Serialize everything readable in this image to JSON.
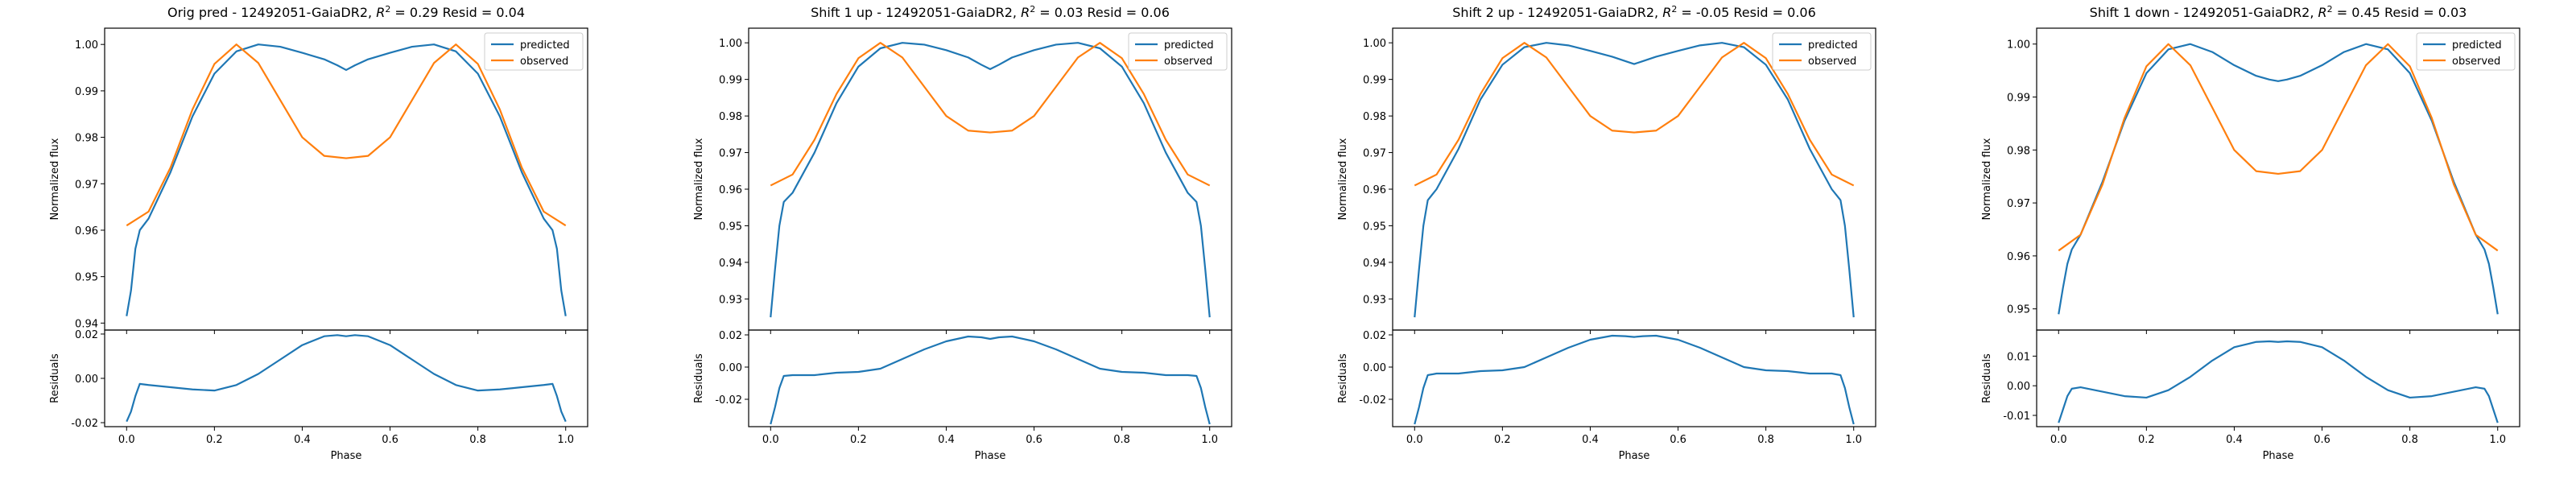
{
  "figure": {
    "legend_labels": [
      "predicted",
      "observed"
    ],
    "colors": {
      "predicted": "#1f77b4",
      "observed": "#ff7f0e"
    }
  },
  "chart_data": [
    {
      "type": "line",
      "title": "Orig pred - 12492051-GaiaDR2, R² = 0.29 Resid = 0.04",
      "title_prefix": "Orig pred - 12492051-GaiaDR2, ",
      "r2_value": "0.29",
      "title_suffix": " Resid = 0.04",
      "xlabel": "Phase",
      "ylabel": "Normalized flux",
      "resid_ylabel": "Residuals",
      "xlim": [
        -0.05,
        1.05
      ],
      "ylim": [
        0.9385,
        1.0035
      ],
      "resid_ylim": [
        -0.0218,
        0.0218
      ],
      "xticks": [
        "0.0",
        "0.2",
        "0.4",
        "0.6",
        "0.8",
        "1.0"
      ],
      "yticks": [
        "0.94",
        "0.95",
        "0.96",
        "0.97",
        "0.98",
        "0.99",
        "1.00"
      ],
      "resid_yticks": [
        "-0.02",
        "0.00",
        "0.02"
      ],
      "legend": "upper right",
      "series": [
        {
          "name": "predicted",
          "x": [
            0.0,
            0.01,
            0.02,
            0.03,
            0.05,
            0.1,
            0.15,
            0.2,
            0.25,
            0.3,
            0.35,
            0.4,
            0.45,
            0.48,
            0.5,
            0.52,
            0.55,
            0.6,
            0.65,
            0.7,
            0.75,
            0.8,
            0.85,
            0.9,
            0.95,
            0.97,
            0.98,
            0.99,
            1.0
          ],
          "y": [
            0.9415,
            0.947,
            0.956,
            0.96,
            0.9625,
            0.9725,
            0.9845,
            0.9937,
            0.9985,
            1.0,
            0.9995,
            0.9982,
            0.9968,
            0.9955,
            0.9945,
            0.9955,
            0.9968,
            0.9982,
            0.9995,
            1.0,
            0.9985,
            0.9937,
            0.9845,
            0.9725,
            0.9625,
            0.96,
            0.956,
            0.947,
            0.9415
          ]
        },
        {
          "name": "observed",
          "x": [
            0.0,
            0.05,
            0.1,
            0.15,
            0.2,
            0.25,
            0.3,
            0.35,
            0.4,
            0.45,
            0.5,
            0.55,
            0.6,
            0.65,
            0.7,
            0.75,
            0.8,
            0.85,
            0.9,
            0.95,
            1.0
          ],
          "y": [
            0.961,
            0.964,
            0.9735,
            0.986,
            0.9958,
            1.0,
            0.996,
            0.988,
            0.98,
            0.976,
            0.9755,
            0.976,
            0.98,
            0.988,
            0.996,
            1.0,
            0.9958,
            0.986,
            0.9735,
            0.964,
            0.961
          ]
        }
      ],
      "residuals": {
        "x": [
          0.0,
          0.01,
          0.02,
          0.03,
          0.05,
          0.1,
          0.15,
          0.2,
          0.25,
          0.3,
          0.35,
          0.4,
          0.45,
          0.48,
          0.5,
          0.52,
          0.55,
          0.6,
          0.65,
          0.7,
          0.75,
          0.8,
          0.85,
          0.9,
          0.95,
          0.97,
          0.98,
          0.99,
          1.0
        ],
        "y": [
          -0.0195,
          -0.015,
          -0.008,
          -0.0025,
          -0.003,
          -0.004,
          -0.005,
          -0.0055,
          -0.003,
          0.002,
          0.0085,
          0.015,
          0.019,
          0.0195,
          0.019,
          0.0195,
          0.019,
          0.015,
          0.0085,
          0.002,
          -0.003,
          -0.0055,
          -0.005,
          -0.004,
          -0.003,
          -0.0025,
          -0.008,
          -0.015,
          -0.0195
        ]
      }
    },
    {
      "type": "line",
      "title": "Shift 1 up - 12492051-GaiaDR2, R² = 0.03 Resid = 0.06",
      "title_prefix": "Shift 1 up - 12492051-GaiaDR2, ",
      "r2_value": "0.03",
      "title_suffix": " Resid = 0.06",
      "xlabel": "Phase",
      "ylabel": "Normalized flux",
      "resid_ylabel": "Residuals",
      "xlim": [
        -0.05,
        1.05
      ],
      "ylim": [
        0.9215,
        1.004
      ],
      "resid_ylim": [
        -0.037,
        0.023
      ],
      "xticks": [
        "0.0",
        "0.2",
        "0.4",
        "0.6",
        "0.8",
        "1.0"
      ],
      "yticks": [
        "0.93",
        "0.94",
        "0.95",
        "0.96",
        "0.97",
        "0.98",
        "0.99",
        "1.00"
      ],
      "resid_yticks": [
        "-0.02",
        "0.00",
        "0.02"
      ],
      "legend": "upper right",
      "series": [
        {
          "name": "predicted",
          "x": [
            0.0,
            0.01,
            0.02,
            0.03,
            0.05,
            0.1,
            0.15,
            0.2,
            0.25,
            0.3,
            0.35,
            0.4,
            0.45,
            0.48,
            0.5,
            0.52,
            0.55,
            0.6,
            0.65,
            0.7,
            0.75,
            0.8,
            0.85,
            0.9,
            0.95,
            0.97,
            0.98,
            0.99,
            1.0
          ],
          "y": [
            0.925,
            0.938,
            0.95,
            0.9565,
            0.959,
            0.97,
            0.9835,
            0.9935,
            0.9985,
            1.0,
            0.9995,
            0.998,
            0.996,
            0.994,
            0.9928,
            0.994,
            0.996,
            0.998,
            0.9995,
            1.0,
            0.9985,
            0.9935,
            0.9835,
            0.97,
            0.959,
            0.9565,
            0.95,
            0.938,
            0.925
          ]
        },
        {
          "name": "observed",
          "x": [
            0.0,
            0.05,
            0.1,
            0.15,
            0.2,
            0.25,
            0.3,
            0.35,
            0.4,
            0.45,
            0.5,
            0.55,
            0.6,
            0.65,
            0.7,
            0.75,
            0.8,
            0.85,
            0.9,
            0.95,
            1.0
          ],
          "y": [
            0.961,
            0.964,
            0.9735,
            0.986,
            0.9958,
            1.0,
            0.996,
            0.988,
            0.98,
            0.976,
            0.9755,
            0.976,
            0.98,
            0.988,
            0.996,
            1.0,
            0.9958,
            0.986,
            0.9735,
            0.964,
            0.961
          ]
        }
      ],
      "residuals": {
        "x": [
          0.0,
          0.01,
          0.02,
          0.03,
          0.05,
          0.1,
          0.15,
          0.2,
          0.25,
          0.3,
          0.35,
          0.4,
          0.45,
          0.48,
          0.5,
          0.52,
          0.55,
          0.6,
          0.65,
          0.7,
          0.75,
          0.8,
          0.85,
          0.9,
          0.95,
          0.97,
          0.98,
          0.99,
          1.0
        ],
        "y": [
          -0.0355,
          -0.025,
          -0.013,
          -0.0055,
          -0.005,
          -0.005,
          -0.0035,
          -0.003,
          -0.001,
          0.005,
          0.011,
          0.016,
          0.019,
          0.0185,
          0.0175,
          0.0185,
          0.019,
          0.016,
          0.011,
          0.005,
          -0.001,
          -0.003,
          -0.0035,
          -0.005,
          -0.005,
          -0.0055,
          -0.013,
          -0.025,
          -0.0355
        ]
      }
    },
    {
      "type": "line",
      "title": "Shift 2 up - 12492051-GaiaDR2, R² = -0.05 Resid = 0.06",
      "title_prefix": "Shift 2 up - 12492051-GaiaDR2, ",
      "r2_value": "-0.05",
      "title_suffix": " Resid = 0.06",
      "xlabel": "Phase",
      "ylabel": "Normalized flux",
      "resid_ylabel": "Residuals",
      "xlim": [
        -0.05,
        1.05
      ],
      "ylim": [
        0.9215,
        1.004
      ],
      "resid_ylim": [
        -0.037,
        0.023
      ],
      "xticks": [
        "0.0",
        "0.2",
        "0.4",
        "0.6",
        "0.8",
        "1.0"
      ],
      "yticks": [
        "0.93",
        "0.94",
        "0.95",
        "0.96",
        "0.97",
        "0.98",
        "0.99",
        "1.00"
      ],
      "resid_yticks": [
        "-0.02",
        "0.00",
        "0.02"
      ],
      "legend": "upper right",
      "series": [
        {
          "name": "predicted",
          "x": [
            0.0,
            0.01,
            0.02,
            0.03,
            0.05,
            0.1,
            0.15,
            0.2,
            0.25,
            0.3,
            0.35,
            0.4,
            0.45,
            0.48,
            0.5,
            0.52,
            0.55,
            0.6,
            0.65,
            0.7,
            0.75,
            0.8,
            0.85,
            0.9,
            0.95,
            0.97,
            0.98,
            0.99,
            1.0
          ],
          "y": [
            0.925,
            0.938,
            0.95,
            0.957,
            0.96,
            0.971,
            0.9845,
            0.994,
            0.9988,
            1.0,
            0.9993,
            0.9978,
            0.9962,
            0.995,
            0.9942,
            0.995,
            0.9962,
            0.9978,
            0.9993,
            1.0,
            0.9988,
            0.994,
            0.9845,
            0.971,
            0.96,
            0.957,
            0.95,
            0.938,
            0.925
          ]
        },
        {
          "name": "observed",
          "x": [
            0.0,
            0.05,
            0.1,
            0.15,
            0.2,
            0.25,
            0.3,
            0.35,
            0.4,
            0.45,
            0.5,
            0.55,
            0.6,
            0.65,
            0.7,
            0.75,
            0.8,
            0.85,
            0.9,
            0.95,
            1.0
          ],
          "y": [
            0.961,
            0.964,
            0.9735,
            0.986,
            0.9958,
            1.0,
            0.996,
            0.988,
            0.98,
            0.976,
            0.9755,
            0.976,
            0.98,
            0.988,
            0.996,
            1.0,
            0.9958,
            0.986,
            0.9735,
            0.964,
            0.961
          ]
        }
      ],
      "residuals": {
        "x": [
          0.0,
          0.01,
          0.02,
          0.03,
          0.05,
          0.1,
          0.15,
          0.2,
          0.25,
          0.3,
          0.35,
          0.4,
          0.45,
          0.48,
          0.5,
          0.52,
          0.55,
          0.6,
          0.65,
          0.7,
          0.75,
          0.8,
          0.85,
          0.9,
          0.95,
          0.97,
          0.98,
          0.99,
          1.0
        ],
        "y": [
          -0.0355,
          -0.025,
          -0.013,
          -0.005,
          -0.004,
          -0.004,
          -0.0025,
          -0.002,
          0.0,
          0.006,
          0.012,
          0.017,
          0.0195,
          0.0192,
          0.0187,
          0.0192,
          0.0195,
          0.017,
          0.012,
          0.006,
          0.0,
          -0.002,
          -0.0025,
          -0.004,
          -0.004,
          -0.005,
          -0.013,
          -0.025,
          -0.0355
        ]
      }
    },
    {
      "type": "line",
      "title": "Shift 1 down - 12492051-GaiaDR2, R² = 0.45 Resid = 0.03",
      "title_prefix": "Shift 1 down - 12492051-GaiaDR2, ",
      "r2_value": "0.45",
      "title_suffix": " Resid = 0.03",
      "xlabel": "Phase",
      "ylabel": "Normalized flux",
      "resid_ylabel": "Residuals",
      "xlim": [
        -0.05,
        1.05
      ],
      "ylim": [
        0.946,
        1.003
      ],
      "resid_ylim": [
        -0.0138,
        0.0188
      ],
      "xticks": [
        "0.0",
        "0.2",
        "0.4",
        "0.6",
        "0.8",
        "1.0"
      ],
      "yticks": [
        "0.95",
        "0.96",
        "0.97",
        "0.98",
        "0.99",
        "1.00"
      ],
      "resid_yticks": [
        "-0.01",
        "0.00",
        "0.01"
      ],
      "legend": "upper right",
      "series": [
        {
          "name": "predicted",
          "x": [
            0.0,
            0.01,
            0.02,
            0.03,
            0.05,
            0.1,
            0.15,
            0.2,
            0.25,
            0.3,
            0.35,
            0.4,
            0.45,
            0.48,
            0.5,
            0.52,
            0.55,
            0.6,
            0.65,
            0.7,
            0.75,
            0.8,
            0.85,
            0.9,
            0.95,
            0.97,
            0.98,
            0.99,
            1.0
          ],
          "y": [
            0.949,
            0.954,
            0.9585,
            0.9612,
            0.964,
            0.974,
            0.9855,
            0.9945,
            0.999,
            1.0,
            0.9985,
            0.996,
            0.994,
            0.9933,
            0.993,
            0.9933,
            0.994,
            0.996,
            0.9985,
            1.0,
            0.999,
            0.9945,
            0.9855,
            0.974,
            0.964,
            0.9612,
            0.9585,
            0.954,
            0.949
          ]
        },
        {
          "name": "observed",
          "x": [
            0.0,
            0.05,
            0.1,
            0.15,
            0.2,
            0.25,
            0.3,
            0.35,
            0.4,
            0.45,
            0.5,
            0.55,
            0.6,
            0.65,
            0.7,
            0.75,
            0.8,
            0.85,
            0.9,
            0.95,
            1.0
          ],
          "y": [
            0.961,
            0.964,
            0.9735,
            0.986,
            0.9958,
            1.0,
            0.996,
            0.988,
            0.98,
            0.976,
            0.9755,
            0.976,
            0.98,
            0.988,
            0.996,
            1.0,
            0.9958,
            0.986,
            0.9735,
            0.964,
            0.961
          ]
        }
      ],
      "residuals": {
        "x": [
          0.0,
          0.01,
          0.02,
          0.03,
          0.05,
          0.1,
          0.15,
          0.2,
          0.25,
          0.3,
          0.35,
          0.4,
          0.45,
          0.48,
          0.5,
          0.52,
          0.55,
          0.6,
          0.65,
          0.7,
          0.75,
          0.8,
          0.85,
          0.9,
          0.95,
          0.97,
          0.98,
          0.99,
          1.0
        ],
        "y": [
          -0.0125,
          -0.008,
          -0.0035,
          -0.001,
          -0.0005,
          -0.002,
          -0.0035,
          -0.004,
          -0.0015,
          0.003,
          0.0085,
          0.013,
          0.0148,
          0.015,
          0.0148,
          0.015,
          0.0148,
          0.013,
          0.0085,
          0.003,
          -0.0015,
          -0.004,
          -0.0035,
          -0.002,
          -0.0005,
          -0.001,
          -0.0035,
          -0.008,
          -0.0125
        ]
      }
    }
  ]
}
